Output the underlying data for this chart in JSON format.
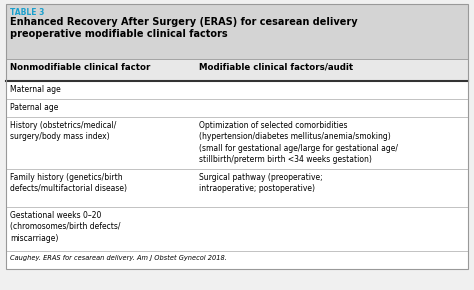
{
  "table_label": "TABLE 3",
  "title_line1": "Enhanced Recovery After Surgery (ERAS) for cesarean delivery",
  "title_line2": "preoperative modifiable clinical factors",
  "col1_header": "Nonmodifiable clinical factor",
  "col2_header": "Modifiable clinical factors/audit",
  "rows": [
    [
      "Maternal age",
      ""
    ],
    [
      "Paternal age",
      ""
    ],
    [
      "History (obstetrics/medical/\nsurgery/body mass index)",
      "Optimization of selected comorbidities\n(hypertension/diabetes mellitus/anemia/smoking)\n(small for gestational age/large for gestational age/\nstillbirth/preterm birth <34 weeks gestation)"
    ],
    [
      "Family history (genetics/birth\ndefects/multifactorial disease)",
      "Surgical pathway (preoperative;\nintraoperative; postoperative)"
    ],
    [
      "Gestational weeks 0–20\n(chromosomes/birth defects/\nmiscarriage)",
      ""
    ]
  ],
  "footnote": "Caughey. ERAS for cesarean delivery. Am J Obstet Gynecol 2018.",
  "title_bg": "#d4d4d4",
  "header_bg": "#e8e8e8",
  "body_bg": "#f0f0f0",
  "row_bg": "#ffffff",
  "table_label_color": "#1a9fcc",
  "text_color": "#000000",
  "col_split": 0.405,
  "font_size_label": 5.5,
  "font_size_title": 7.0,
  "font_size_header": 6.2,
  "font_size_body": 5.5,
  "font_size_footnote": 4.8
}
